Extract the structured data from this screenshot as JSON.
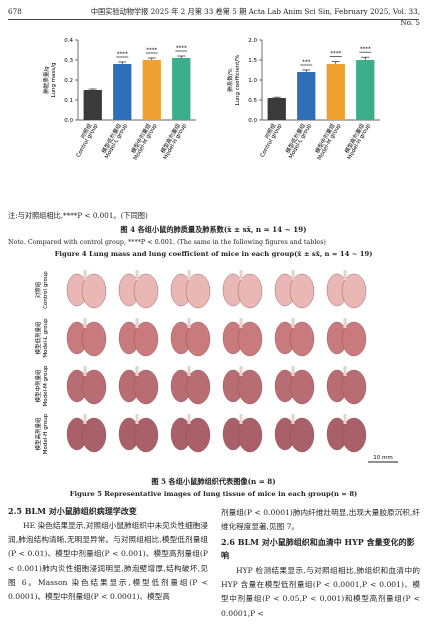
{
  "header": {
    "page": "678",
    "journal": "中国实验动物学报 2025 年 2 月第 33 卷第 5 期  Acta Lab Anim Sci Sin, February 2025, Vol. 33, No. 5"
  },
  "chart_data": [
    {
      "type": "bar",
      "ylabel": "肺脏质量/g",
      "ylabel_en": "Lung mass/g",
      "categories": [
        "对照组",
        "模型低剂量组",
        "模型中剂量组",
        "模型高剂量组"
      ],
      "categories_en": [
        "Control group",
        "Model-L group",
        "Model-M group",
        "Model-H group"
      ],
      "values": [
        0.15,
        0.28,
        0.3,
        0.31
      ],
      "errors": [
        0.005,
        0.01,
        0.01,
        0.01
      ],
      "significance": [
        null,
        "****",
        "****",
        "****"
      ],
      "colors": [
        "#3a3a3a",
        "#2e6fb7",
        "#f0a030",
        "#3cae8a"
      ],
      "ylim": [
        0,
        0.4
      ],
      "yticks": [
        {
          "value": 0,
          "label": "0.0"
        },
        0.1,
        0.2,
        0.3,
        0.4
      ]
    },
    {
      "type": "bar",
      "ylabel": "肺系数/%",
      "ylabel_en": "Lung coefficient/%",
      "categories": [
        "对照组",
        "模型低剂量组",
        "模型中剂量组",
        "模型高剂量组"
      ],
      "categories_en": [
        "Control group",
        "Model-L group",
        "Model-M group",
        "Model-H group"
      ],
      "values": [
        0.55,
        1.2,
        1.4,
        1.5
      ],
      "errors": [
        0.02,
        0.05,
        0.06,
        0.07
      ],
      "significance": [
        null,
        "***",
        "****",
        "****"
      ],
      "colors": [
        "#3a3a3a",
        "#2e6fb7",
        "#f0a030",
        "#3cae8a"
      ],
      "ylim": [
        0,
        2
      ],
      "yticks": [
        {
          "value": 0,
          "label": "0.0"
        },
        0.5,
        {
          "value": 1,
          "label": "1.0"
        },
        1.5,
        {
          "value": 2,
          "label": "2.0"
        }
      ]
    }
  ],
  "figure4": {
    "note_cn": "注:与对照组相比,****P < 0.001。(下同图)",
    "caption_cn": "图 4   各组小鼠的肺质量及肺系数(x̄ ± sx̄, n = 14 ~ 19)",
    "note_en": "Note. Compared with control group, ****P < 0.001. (The same in the following figures and tables)",
    "caption_en": "Figure 4   Lung mass and lung coefficient of mice in each group(x̄ ± sx̄, n = 14 ~ 19)"
  },
  "figure5": {
    "rows": [
      {
        "cn": "对照组",
        "en": "Control group"
      },
      {
        "cn": "模型低剂量组",
        "en": "Model-L group"
      },
      {
        "cn": "模型中剂量组",
        "en": "Model-M group"
      },
      {
        "cn": "模型高剂量组",
        "en": "Model-H group"
      }
    ],
    "scale": "10 mm",
    "caption_cn": "图 5   各组小鼠肺组织代表图像(n = 8)",
    "caption_en": "Figure 5   Representative images of lung tissue of mice in each group(n = 8)"
  },
  "body": {
    "heading_25": "2.5   BLM 对小鼠肺组织病理学改变",
    "para_25": "HE 染色结果显示,对照组小鼠肺组织中未见炎性细胞浸润,肺泡结构清晰,无明显异常。与对照组相比,模型低剂量组(P < 0.01)、模型中剂量组(P < 0.001)、模型高剂量组(P < 0.001)肺内炎性细胞浸润明显,肺泡壁增厚,结构破坏,见图 6。Masson 染色结果显示,模型低剂量组(P < 0.0001)、模型中剂量组(P < 0.0001)、模型高",
    "para_25b": "剂量组(P < 0.0001)肺内纤维灶明显,出现大量胶原沉积,纤维化程度显著,见图 7。",
    "heading_26": "2.6   BLM 对小鼠肺组织和血清中 HYP 含量变化的影响",
    "para_26": "HYP 检测结果显示,与对照组相比,肺组织和血清中的 HYP 含量在模型低剂量组(P < 0.0001,P < 0.001)、模型中剂量组(P < 0.05,P < 0.001)和模型高剂量组(P < 0.0001,P <"
  }
}
